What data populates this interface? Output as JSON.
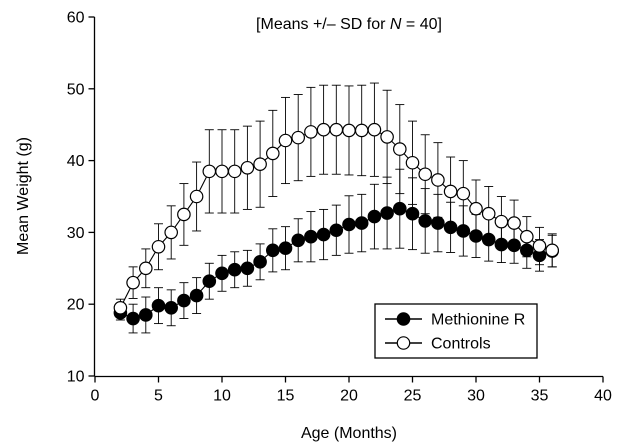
{
  "chart_data": {
    "type": "line",
    "title": "",
    "annotation": {
      "prefix": "[Means +/– SD for ",
      "italic": "N",
      "suffix": " = 40]"
    },
    "xlabel": "Age (Months)",
    "ylabel": "Mean Weight (g)",
    "xlim": [
      0,
      40
    ],
    "ylim": [
      10,
      60
    ],
    "xticks": [
      0,
      5,
      10,
      15,
      20,
      25,
      30,
      35,
      40
    ],
    "yticks": [
      10,
      20,
      30,
      40,
      50,
      60
    ],
    "grid": false,
    "legend_position": "bottom-right",
    "series": [
      {
        "name": "Controls",
        "marker": "open-circle",
        "color": "#000000",
        "x": [
          2,
          3,
          4,
          5,
          6,
          7,
          8,
          9,
          10,
          11,
          12,
          13,
          14,
          15,
          16,
          17,
          18,
          19,
          20,
          21,
          22,
          23,
          24,
          25,
          26,
          27,
          28,
          29,
          30,
          31,
          32,
          33,
          34,
          35,
          36
        ],
        "y": [
          19.5,
          23,
          25,
          28,
          30,
          32.5,
          35,
          38.5,
          38.5,
          38.5,
          39,
          39.5,
          41,
          42.8,
          43.2,
          44,
          44.3,
          44.3,
          44.2,
          44.2,
          44.3,
          43.3,
          41.6,
          39.7,
          38.1,
          37.3,
          35.7,
          35.4,
          33.3,
          32.6,
          31.5,
          31.3,
          29.4,
          28.1,
          27.5
        ],
        "sd": [
          1.2,
          2.2,
          2.7,
          3.2,
          3.7,
          4.3,
          4.8,
          5.8,
          5.8,
          5.8,
          5.8,
          6,
          6,
          6,
          6,
          6.2,
          6.2,
          6.2,
          6.2,
          6.3,
          6.5,
          6.5,
          6.2,
          5.8,
          5.5,
          5.2,
          4.8,
          4.6,
          4,
          3.8,
          3.5,
          3.2,
          2.8,
          2.6,
          2.3
        ]
      },
      {
        "name": "Methionine R",
        "marker": "filled-circle",
        "color": "#000000",
        "x": [
          2,
          3,
          4,
          5,
          6,
          7,
          8,
          9,
          10,
          11,
          12,
          13,
          14,
          15,
          16,
          17,
          18,
          19,
          20,
          21,
          22,
          23,
          24,
          25,
          26,
          27,
          28,
          29,
          30,
          31,
          32,
          33,
          34,
          35,
          36
        ],
        "y": [
          18.8,
          18,
          18.5,
          19.8,
          19.5,
          20.5,
          21.2,
          23.2,
          24.3,
          24.8,
          25,
          25.9,
          27.5,
          27.8,
          28.9,
          29.4,
          29.7,
          30.3,
          31.1,
          31.3,
          32.2,
          32.7,
          33.3,
          32.6,
          31.6,
          31.3,
          30.7,
          30.2,
          29.5,
          29,
          28.3,
          28.2,
          27.5,
          26.8,
          27.4
        ],
        "sd": [
          1,
          2,
          2.5,
          2.5,
          2.5,
          2.5,
          2.5,
          2.5,
          2.5,
          2.5,
          2.5,
          2.5,
          3,
          3,
          3,
          3.5,
          3.5,
          3.5,
          4,
          4,
          4.5,
          5,
          5.5,
          5,
          4.5,
          4,
          3.5,
          3.5,
          3,
          3,
          2.5,
          2.5,
          2.5,
          2.2,
          2.2
        ]
      }
    ],
    "legend": [
      {
        "label": "Methionine R",
        "marker": "filled-circle"
      },
      {
        "label": "Controls",
        "marker": "open-circle"
      }
    ]
  }
}
